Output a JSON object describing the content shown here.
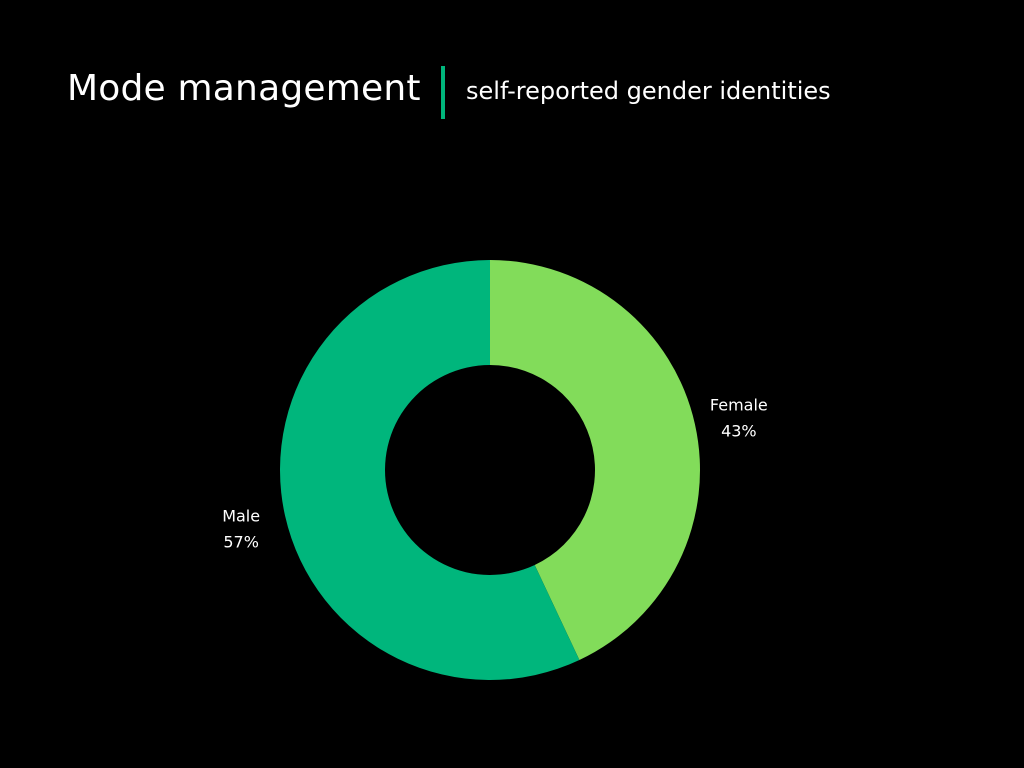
{
  "header": {
    "title": "Mode management",
    "subtitle": "self-reported gender identities",
    "accent_color": "#00b67c"
  },
  "chart_data": {
    "type": "pie",
    "variant": "donut",
    "start_angle_deg": 0,
    "direction": "clockwise",
    "slices": [
      {
        "label": "Female",
        "value": 43,
        "percent_label": "43%",
        "color": "#82dc5a"
      },
      {
        "label": "Male",
        "value": 57,
        "percent_label": "57%",
        "color": "#00b67c"
      }
    ],
    "background": "#000000",
    "label_color": "#ffffff"
  }
}
